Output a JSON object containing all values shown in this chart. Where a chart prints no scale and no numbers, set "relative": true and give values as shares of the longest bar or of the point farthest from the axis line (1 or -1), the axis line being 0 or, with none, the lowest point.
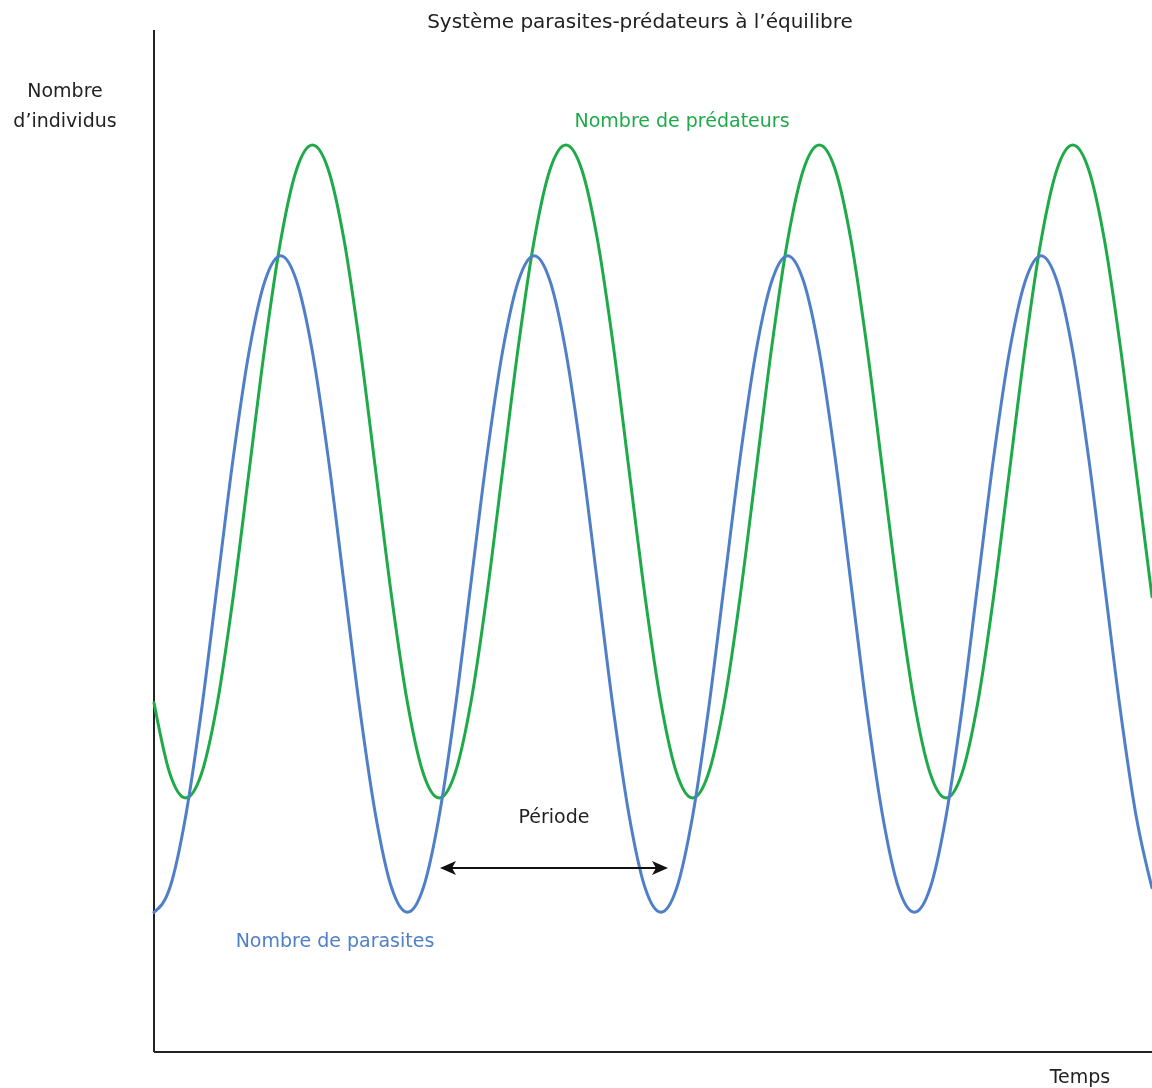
{
  "chart_data": {
    "type": "line",
    "title": "Système parasites-prédateurs à l’équilibre",
    "xlabel": "Temps",
    "ylabel": "Nombre d’individus",
    "relative": true,
    "legend": false,
    "annotations": [
      "Période"
    ],
    "categories": [
      null,
      null,
      null,
      null,
      null,
      null,
      null,
      null,
      null,
      null,
      null,
      null,
      null,
      null,
      null,
      null,
      null,
      null,
      null,
      null,
      null,
      null,
      null,
      null,
      null,
      null,
      null,
      null,
      null,
      null,
      null,
      null,
      null,
      null,
      null,
      null,
      null,
      null,
      null,
      null,
      null,
      null,
      null,
      null,
      null,
      null,
      null,
      null,
      null,
      null,
      null,
      null,
      null,
      null,
      null,
      null,
      null,
      null,
      null,
      null,
      null,
      null,
      null,
      null
    ],
    "series": [
      {
        "name": "Nombre de prédateurs",
        "color": "#1faa4a",
        "values": [
          0.385,
          0.307,
          0.28,
          0.307,
          0.385,
          0.502,
          0.64,
          0.778,
          0.895,
          0.973,
          1.0,
          0.973,
          0.895,
          0.778,
          0.64,
          0.502,
          0.385,
          0.307,
          0.28,
          0.307,
          0.385,
          0.502,
          0.64,
          0.778,
          0.895,
          0.973,
          1.0,
          0.973,
          0.895,
          0.778,
          0.64,
          0.502,
          0.385,
          0.307,
          0.28,
          0.307,
          0.385,
          0.502,
          0.64,
          0.778,
          0.895,
          0.973,
          1.0,
          0.973,
          0.895,
          0.778,
          0.64,
          0.502,
          0.385,
          0.307,
          0.28,
          0.307,
          0.385,
          0.502,
          0.64,
          0.778,
          0.895,
          0.973,
          1.0,
          0.973,
          0.895,
          0.778,
          0.64,
          0.502
        ]
      },
      {
        "name": "Nombre de parasites",
        "color": "#4f7fc8",
        "values": [
          0.154,
          0.181,
          0.26,
          0.377,
          0.516,
          0.655,
          0.772,
          0.85,
          0.878,
          0.85,
          0.772,
          0.655,
          0.516,
          0.377,
          0.26,
          0.181,
          0.154,
          0.181,
          0.26,
          0.377,
          0.516,
          0.655,
          0.772,
          0.85,
          0.878,
          0.85,
          0.772,
          0.655,
          0.516,
          0.377,
          0.26,
          0.181,
          0.154,
          0.181,
          0.26,
          0.377,
          0.516,
          0.655,
          0.772,
          0.85,
          0.878,
          0.85,
          0.772,
          0.655,
          0.516,
          0.377,
          0.26,
          0.181,
          0.154,
          0.181,
          0.26,
          0.377,
          0.516,
          0.655,
          0.772,
          0.85,
          0.878,
          0.85,
          0.772,
          0.655,
          0.516,
          0.377,
          0.26,
          0.181
        ]
      }
    ]
  }
}
